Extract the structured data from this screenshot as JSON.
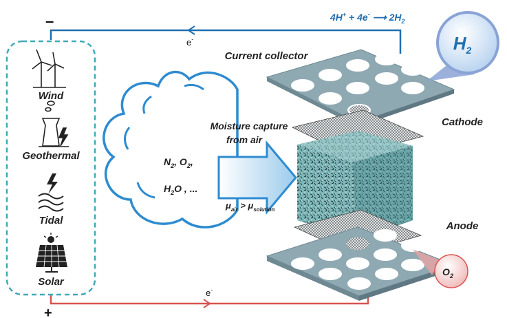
{
  "sources": {
    "wind": "Wind",
    "geothermal": "Geothermal",
    "tidal": "Tidal",
    "solar": "Solar"
  },
  "terminals": {
    "negative": "–",
    "positive": "+"
  },
  "electron": {
    "top": "e",
    "bottom": "e",
    "sup": "-"
  },
  "reaction": {
    "p1": "4H",
    "p1_sup": "+",
    "p2": " + 4e",
    "p2_sup": "-",
    "arrow": " ⟶ ",
    "p3": "2H",
    "p3_sub": "2"
  },
  "layers": {
    "current_collector": "Current collector",
    "cathode": "Cathode",
    "anode": "Anode"
  },
  "gases": {
    "h2": "H",
    "h2_sub": "2",
    "o2": "O",
    "o2_sub": "2"
  },
  "cloud": {
    "line1_a": "N",
    "line1_a_sub": "2",
    "line1_b": ", O",
    "line1_b_sub": "2",
    "line1_c": ",",
    "line2_a": "H",
    "line2_a_sub": "2",
    "line2_b": "O , ..."
  },
  "capture": {
    "line1": "Moisture capture",
    "line2": "from air",
    "mu": "μ",
    "air_sub": "air",
    "gt": " > ",
    "sol_sub": "solution"
  },
  "colors": {
    "positive_wire": "#d9534f",
    "negative_wire": "#1f6fb0",
    "plate": "#8fa9b3",
    "cloud": "#2e8bd0",
    "h2_bubble": "#bcd6f2",
    "o2_bubble": "#f2c1c1"
  }
}
